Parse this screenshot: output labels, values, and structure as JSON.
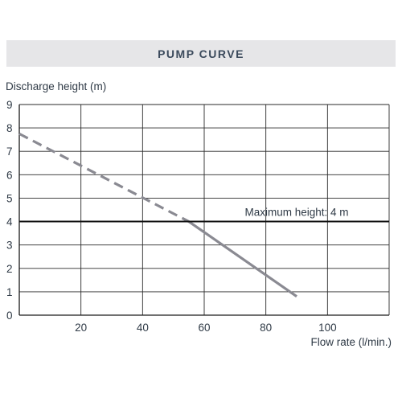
{
  "header": {
    "title": "PUMP CURVE"
  },
  "chart_data": {
    "type": "line",
    "ylabel": "Discharge height (m)",
    "xlabel": "Flow rate (l/min.)",
    "xlim": [
      0,
      120
    ],
    "ylim": [
      0,
      9
    ],
    "x_ticks": [
      20,
      40,
      60,
      80,
      100
    ],
    "y_ticks": [
      0,
      1,
      2,
      3,
      4,
      5,
      6,
      7,
      8,
      9
    ],
    "grid": true,
    "colors": {
      "curve": "#8a8a92",
      "axis": "#1a1a1a",
      "grid": "#2a2a2a"
    },
    "series": [
      {
        "style": "dashed",
        "x": [
          0,
          55
        ],
        "y": [
          7.75,
          4.0
        ]
      },
      {
        "style": "solid",
        "x": [
          55,
          90
        ],
        "y": [
          4.0,
          0.8
        ]
      }
    ],
    "reference_line": {
      "y": 4,
      "label": "Maximum height: 4 m"
    }
  }
}
